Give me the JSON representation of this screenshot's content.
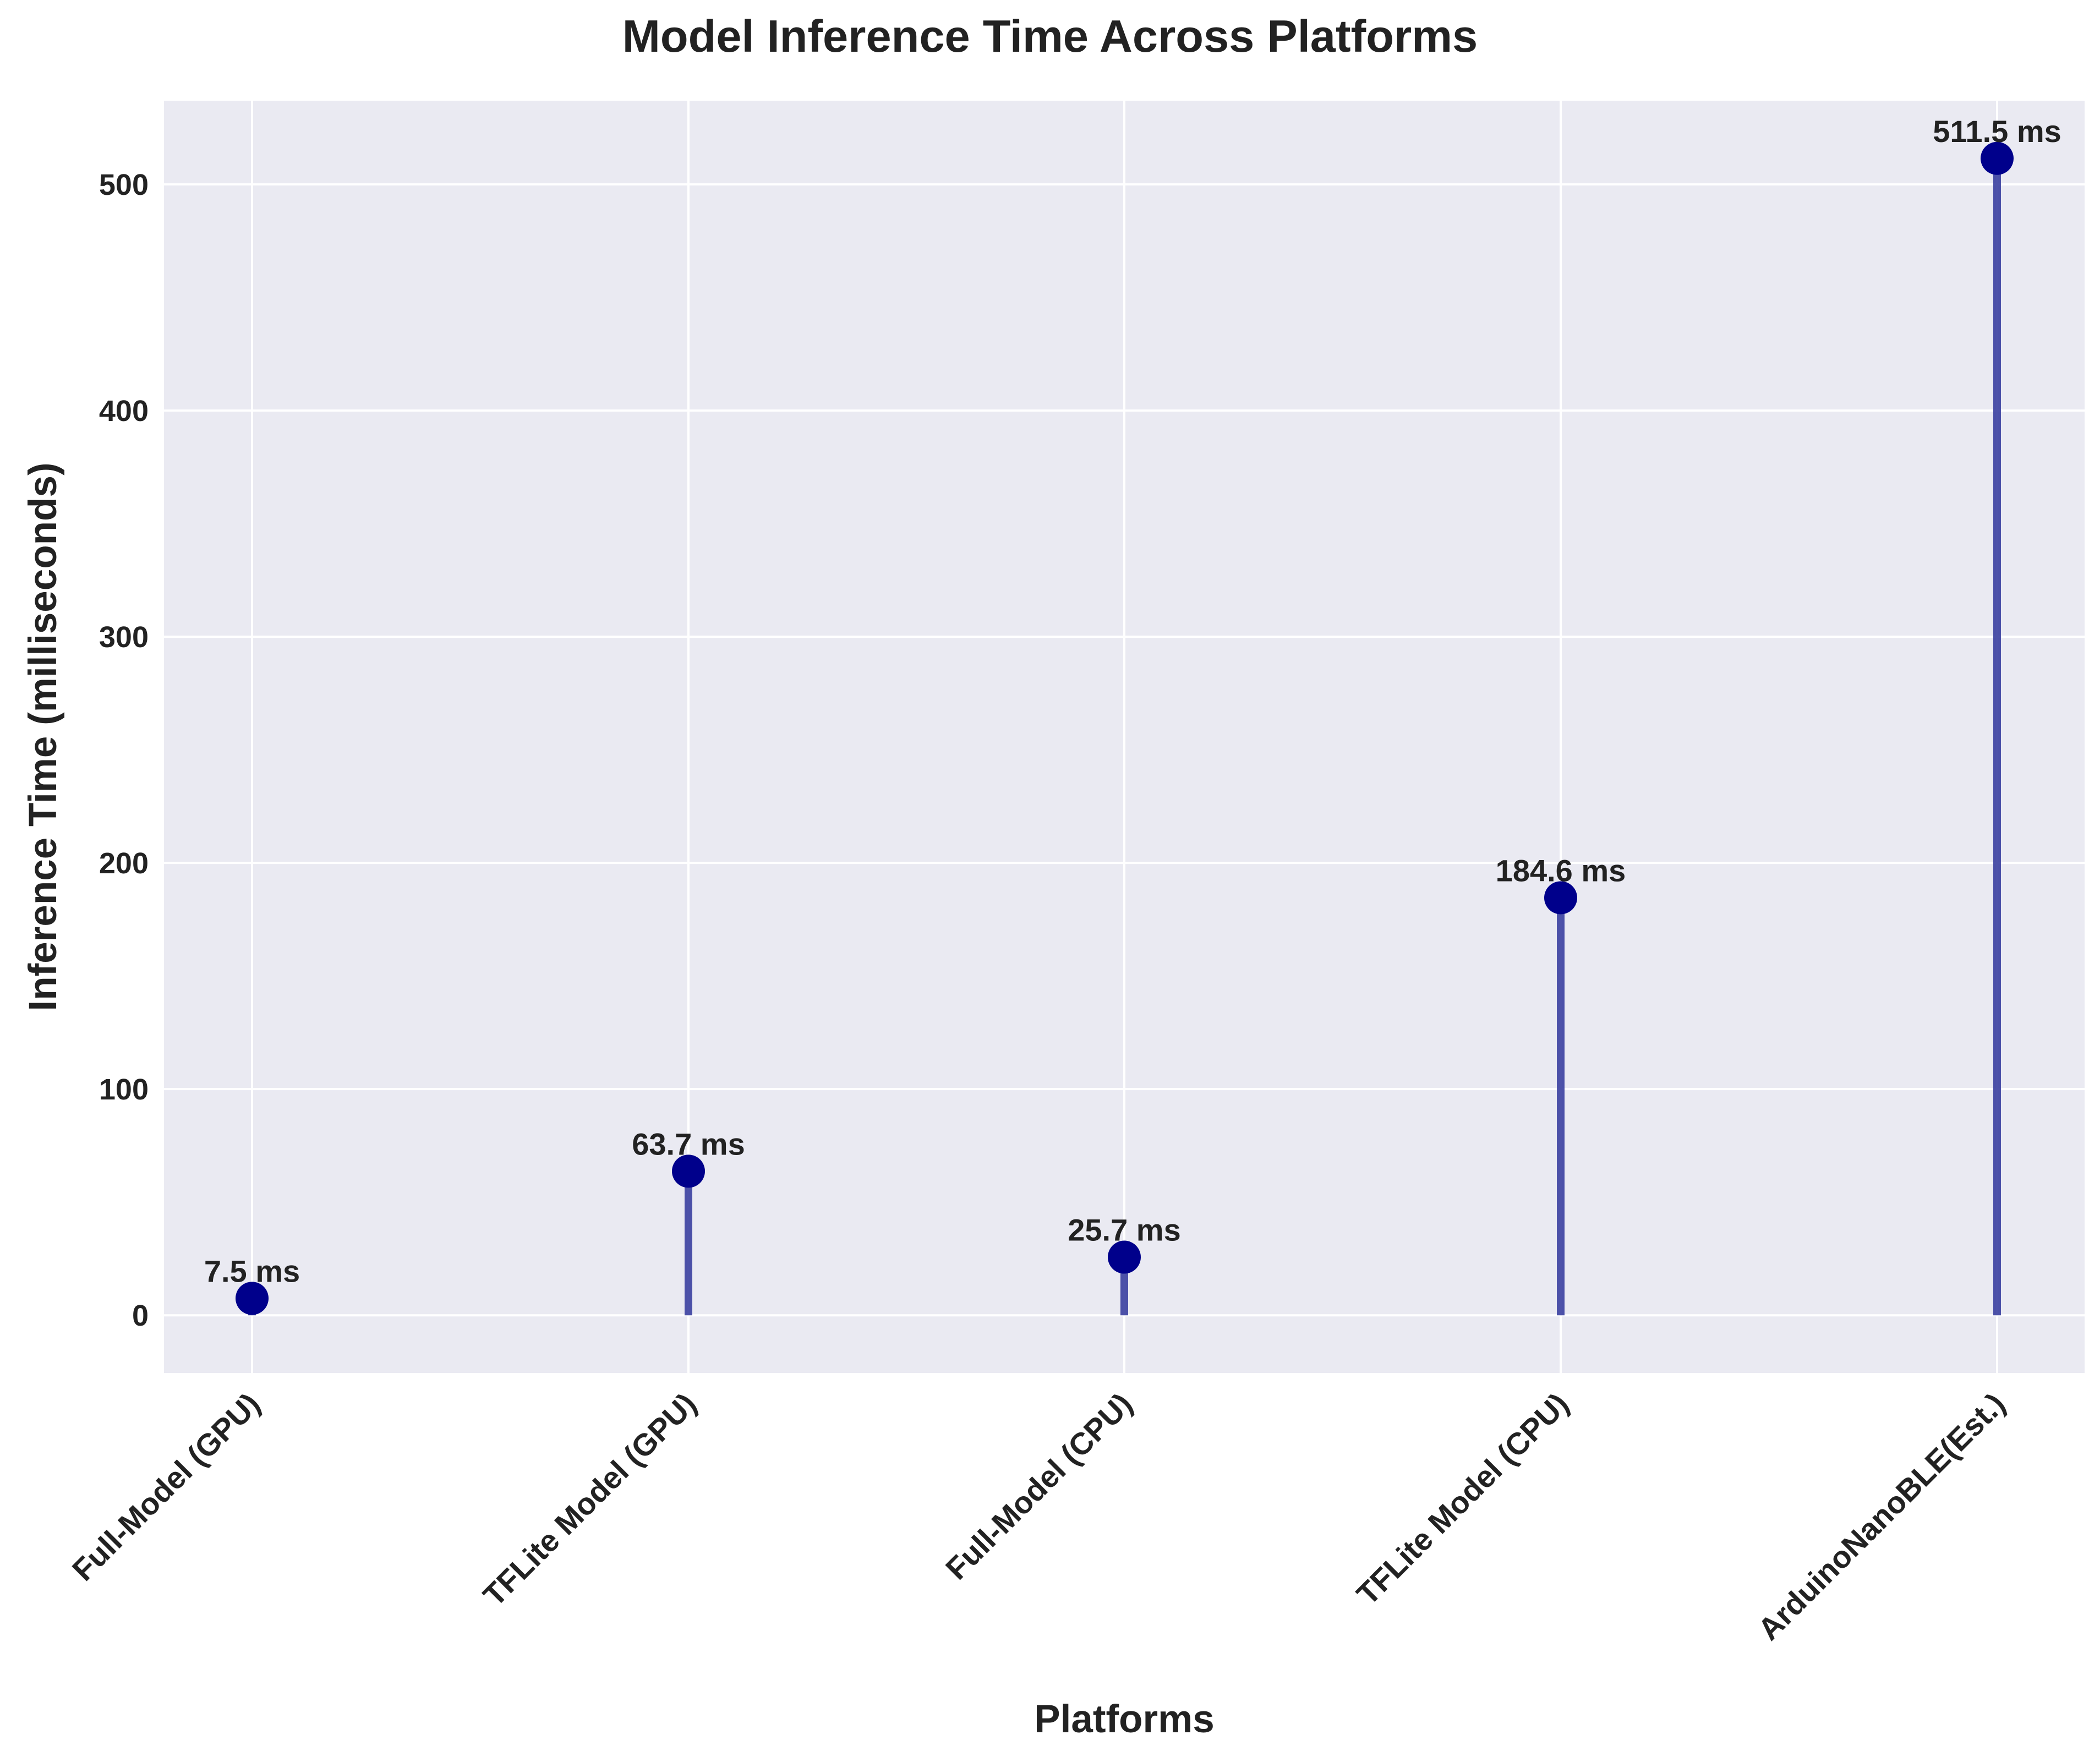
{
  "chart_data": {
    "type": "stem",
    "title": "Model Inference Time Across Platforms",
    "xlabel": "Platforms",
    "ylabel": "Inference Time (milliseconds)",
    "categories": [
      "Full-Model (GPU)",
      "TFLite Model (GPU)",
      "Full-Model (CPU)",
      "TFLite Model (CPU)",
      "ArduinoNanoBLE(Est.)"
    ],
    "values": [
      7.5,
      63.7,
      25.7,
      184.6,
      511.5
    ],
    "value_labels": [
      "7.5 ms",
      "63.7 ms",
      "25.7 ms",
      "184.6 ms",
      "511.5 ms"
    ],
    "ylim": [
      -25.5,
      537.0
    ],
    "yticks": [
      0,
      100,
      200,
      300,
      400,
      500
    ],
    "ytick_labels": [
      "0",
      "100",
      "200",
      "300",
      "400",
      "500"
    ],
    "grid": true,
    "legend": "none",
    "colors": {
      "background": "#eaeaf2",
      "grid": "#ffffff",
      "stem": "#3a3fa0",
      "marker": "#00008b",
      "text": "#222222"
    }
  }
}
